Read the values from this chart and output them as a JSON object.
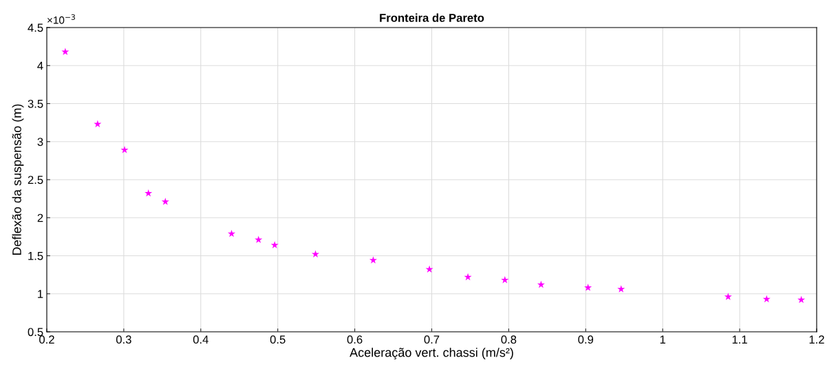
{
  "chart_data": {
    "type": "scatter",
    "title": "Fronteira de Pareto",
    "xlabel": "Aceleração vert. chassi (m/s²)",
    "ylabel": "Deflexão da suspensão (m)",
    "annotations": [
      "×10$^{−3}$"
    ],
    "x": [
      0.224,
      0.266,
      0.301,
      0.332,
      0.354,
      0.44,
      0.475,
      0.496,
      0.549,
      0.624,
      0.697,
      0.747,
      0.795,
      0.842,
      0.903,
      0.946,
      1.085,
      1.135,
      1.18
    ],
    "series": [
      {
        "color": "#ff00ff",
        "values": [
          4.18,
          3.23,
          2.89,
          2.32,
          2.21,
          1.79,
          1.71,
          1.64,
          1.52,
          1.44,
          1.32,
          1.22,
          1.18,
          1.12,
          1.08,
          1.06,
          0.96,
          0.93,
          0.92
        ]
      }
    ],
    "xlim": [
      0.2,
      1.2
    ],
    "xticks": [
      0.2,
      0.3,
      0.4,
      0.5,
      0.6,
      0.7,
      0.8,
      0.9,
      1,
      1.1,
      1.2
    ],
    "ylim": [
      0.5,
      4.5
    ],
    "yticks": [
      0.5,
      1,
      1.5,
      2,
      2.5,
      3,
      3.5,
      4,
      4.5
    ],
    "grid": true,
    "marker": "star"
  }
}
